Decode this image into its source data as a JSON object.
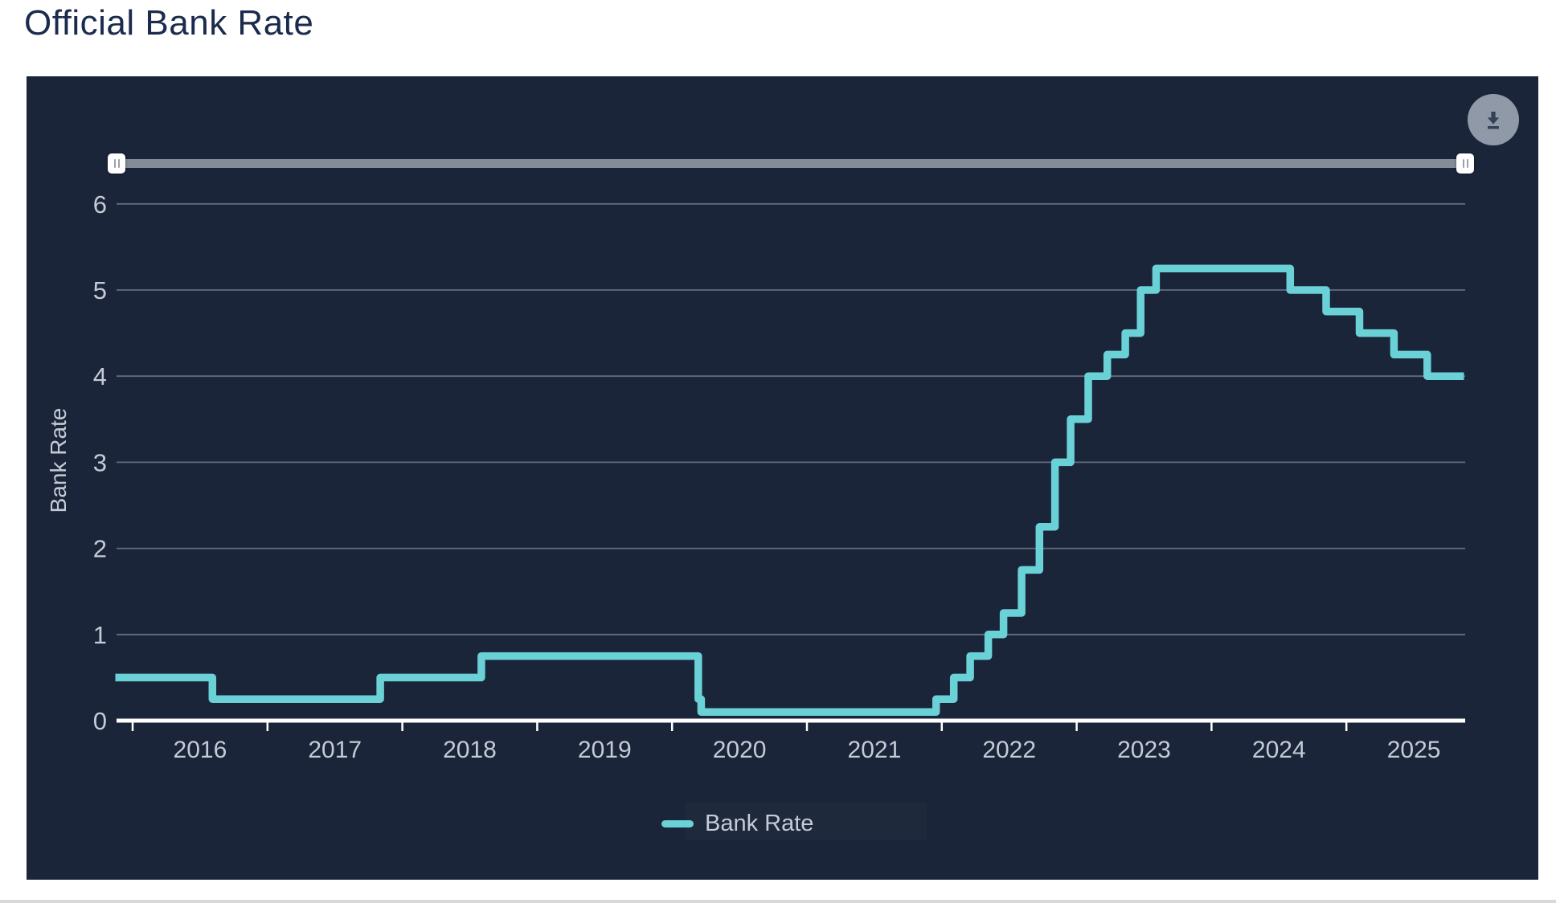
{
  "title": "Official Bank Rate",
  "icons": {
    "download": "download-arrow",
    "slider_grip": "vertical-bars"
  },
  "slider": {
    "type": "range",
    "handles": [
      "left",
      "right"
    ],
    "full_range_selected": true
  },
  "legend": {
    "label": "Bank Rate"
  },
  "chart_data": {
    "type": "line",
    "step": "after",
    "title": "Official Bank Rate",
    "xlabel": "",
    "ylabel": "Bank Rate",
    "x_tick_labels": [
      "2016",
      "2017",
      "2018",
      "2019",
      "2020",
      "2021",
      "2022",
      "2023",
      "2024",
      "2025"
    ],
    "y_tick_labels": [
      "0",
      "1",
      "2",
      "3",
      "4",
      "5",
      "6"
    ],
    "y_ticks": [
      0,
      1,
      2,
      3,
      4,
      5,
      6
    ],
    "xlim_years": [
      2015.88,
      2025.88
    ],
    "ylim": [
      0,
      6.35
    ],
    "grid": "horizontal",
    "legend_position": "bottom",
    "series": [
      {
        "name": "Bank Rate",
        "color": "#6ad1d6",
        "points": [
          {
            "date": "2015-11-15",
            "rate": 0.5
          },
          {
            "date": "2016-08-04",
            "rate": 0.25
          },
          {
            "date": "2017-11-02",
            "rate": 0.5
          },
          {
            "date": "2018-08-02",
            "rate": 0.75
          },
          {
            "date": "2020-03-11",
            "rate": 0.25
          },
          {
            "date": "2020-03-19",
            "rate": 0.1
          },
          {
            "date": "2021-12-16",
            "rate": 0.25
          },
          {
            "date": "2022-02-03",
            "rate": 0.5
          },
          {
            "date": "2022-03-17",
            "rate": 0.75
          },
          {
            "date": "2022-05-05",
            "rate": 1.0
          },
          {
            "date": "2022-06-16",
            "rate": 1.25
          },
          {
            "date": "2022-08-04",
            "rate": 1.75
          },
          {
            "date": "2022-09-22",
            "rate": 2.25
          },
          {
            "date": "2022-11-03",
            "rate": 3.0
          },
          {
            "date": "2022-12-15",
            "rate": 3.5
          },
          {
            "date": "2023-02-02",
            "rate": 4.0
          },
          {
            "date": "2023-03-23",
            "rate": 4.25
          },
          {
            "date": "2023-05-11",
            "rate": 4.5
          },
          {
            "date": "2023-06-22",
            "rate": 5.0
          },
          {
            "date": "2023-08-03",
            "rate": 5.25
          },
          {
            "date": "2024-08-01",
            "rate": 5.0
          },
          {
            "date": "2024-11-07",
            "rate": 4.75
          },
          {
            "date": "2025-02-06",
            "rate": 4.5
          },
          {
            "date": "2025-05-08",
            "rate": 4.25
          },
          {
            "date": "2025-08-07",
            "rate": 4.0
          },
          {
            "date": "2025-11-15",
            "rate": 4.0
          }
        ]
      }
    ]
  },
  "colors": {
    "accent_line": "#6ad1d6",
    "card_background": "#1a2539",
    "gridline": "#646d7d",
    "axis_line": "#ffffff",
    "axis_text": "#c5cbd6",
    "title_text": "#1b2b4d",
    "slider_track": "#848c99",
    "slider_handle": "#ffffff",
    "download_button_bg": "#8f99a7",
    "download_button_icon": "#344156",
    "page_background": "#ffffff",
    "bottom_divider": "#d6d8db"
  }
}
